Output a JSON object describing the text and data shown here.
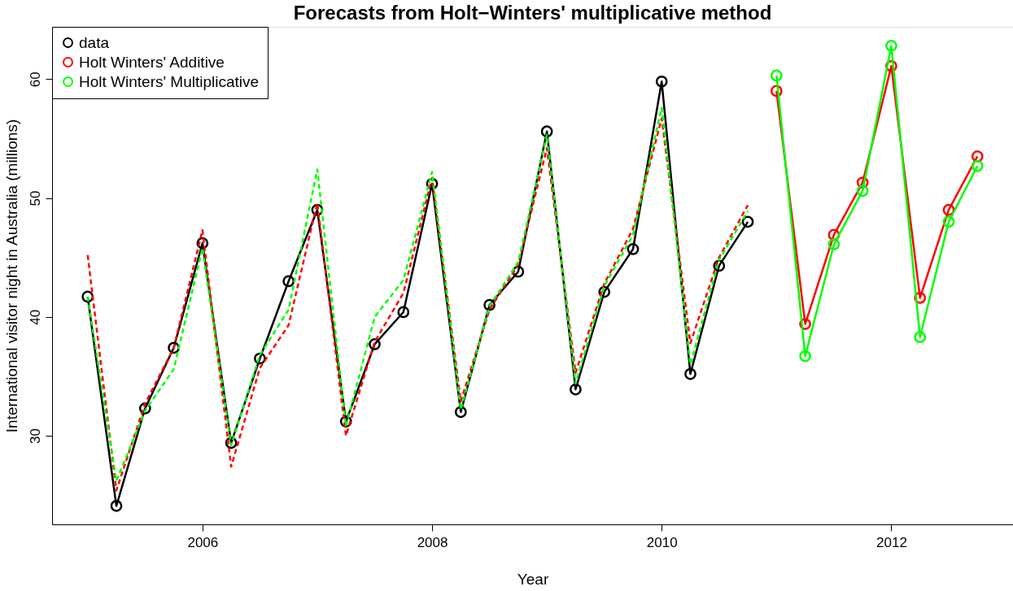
{
  "chart_data": {
    "type": "line",
    "title": "Forecasts from Holt−Winters' multiplicative method",
    "xlabel": "Year",
    "ylabel": "International visitor night in Australia (millions)",
    "xlim": [
      2004.69,
      2013.06
    ],
    "xticks": [
      2006,
      2008,
      2010,
      2012
    ],
    "ylim": [
      22.55,
      64.4
    ],
    "yticks": [
      30,
      40,
      50,
      60
    ],
    "grid": false,
    "legend": "top left",
    "marker": "circle",
    "line_style": "solid",
    "series": [
      {
        "name": "data",
        "color": "#000000",
        "x": [
          2005,
          2005.25,
          2005.5,
          2005.75,
          2006,
          2006.25,
          2006.5,
          2006.75,
          2007,
          2007.25,
          2007.5,
          2007.75,
          2008,
          2008.25,
          2008.5,
          2008.75,
          2009,
          2009.25,
          2009.5,
          2009.75,
          2010,
          2010.25,
          2010.5,
          2010.75
        ],
        "values": [
          41.7,
          24.1,
          32.3,
          37.4,
          46.2,
          29.4,
          36.5,
          43.0,
          49.0,
          31.2,
          37.7,
          40.4,
          51.2,
          32.0,
          41.0,
          43.8,
          55.6,
          33.9,
          42.1,
          45.7,
          59.8,
          35.2,
          44.3,
          48.0
        ]
      },
      {
        "name": "Holt Winters' Additive",
        "color": "#ff0000",
        "x": [
          2011,
          2011.25,
          2011.5,
          2011.75,
          2012,
          2012.25,
          2012.5,
          2012.75
        ],
        "values": [
          59.0,
          39.4,
          46.9,
          51.3,
          61.1,
          41.6,
          49.0,
          53.5
        ]
      },
      {
        "name": "Holt Winters' Multiplicative",
        "color": "#00ff00",
        "x": [
          2011,
          2011.25,
          2011.5,
          2011.75,
          2012,
          2012.25,
          2012.5,
          2012.75
        ],
        "values": [
          60.3,
          36.7,
          46.1,
          50.6,
          62.8,
          38.3,
          48.0,
          52.7
        ]
      },
      {
        "color": "#ff0000",
        "line_style": "dashed",
        "marker": "none",
        "x": [
          2005,
          2005.25,
          2005.5,
          2005.75,
          2006,
          2006.25,
          2006.5,
          2006.75,
          2007,
          2007.25,
          2007.5,
          2007.75,
          2008,
          2008.25,
          2008.5,
          2008.75,
          2009,
          2009.25,
          2009.5,
          2009.75,
          2010,
          2010.25,
          2010.5,
          2010.75
        ],
        "values": [
          45.2,
          25.4,
          32.7,
          37.4,
          47.3,
          27.4,
          35.7,
          39.3,
          49.6,
          30.0,
          37.9,
          42.0,
          51.7,
          32.9,
          40.6,
          44.4,
          54.2,
          35.3,
          42.8,
          47.4,
          56.7,
          37.8,
          45.0,
          49.4
        ]
      },
      {
        "color": "#00ff00",
        "line_style": "dashed",
        "marker": "none",
        "x": [
          2005,
          2005.25,
          2005.5,
          2005.75,
          2006,
          2006.25,
          2006.5,
          2006.75,
          2007,
          2007.25,
          2007.5,
          2007.75,
          2008,
          2008.25,
          2008.5,
          2008.75,
          2009,
          2009.25,
          2009.5,
          2009.75,
          2010,
          2010.25,
          2010.5,
          2010.75
        ],
        "values": [
          41.7,
          26.2,
          32.1,
          35.6,
          45.8,
          29.2,
          36.8,
          40.6,
          52.4,
          30.8,
          40.0,
          43.1,
          52.2,
          32.2,
          40.9,
          44.6,
          55.3,
          34.4,
          42.6,
          46.9,
          57.6,
          36.0,
          44.8,
          48.9
        ]
      }
    ]
  }
}
